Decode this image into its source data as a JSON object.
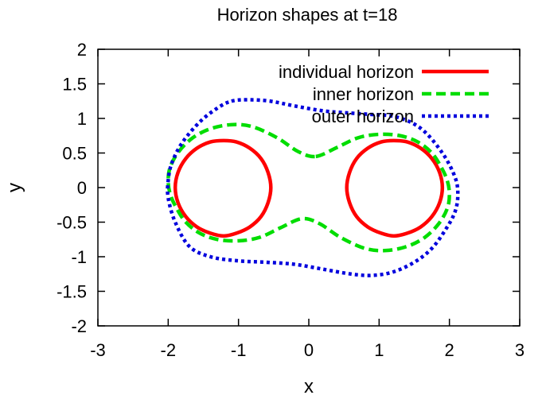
{
  "chart_data": {
    "type": "line",
    "title": "Horizon shapes at t=18",
    "xlabel": "x",
    "ylabel": "y",
    "xlim": [
      -3,
      3
    ],
    "ylim": [
      -2,
      2
    ],
    "xticks": [
      -3,
      -2,
      -1,
      0,
      1,
      2,
      3
    ],
    "yticks": [
      -2,
      -1.5,
      -1,
      -0.5,
      0,
      0.5,
      1,
      1.5,
      2
    ],
    "xtick_labels": [
      "-3",
      "-2",
      "-1",
      "0",
      "1",
      "2",
      "3"
    ],
    "ytick_labels": [
      "-2",
      "-1.5",
      "-1",
      "-0.5",
      "0",
      "0.5",
      "1",
      "1.5",
      "2"
    ],
    "grid": false,
    "legend_position": "top-right",
    "series": [
      {
        "name": "individual horizon",
        "color": "#ff0000",
        "dash": "solid",
        "closed": true,
        "segments": [
          {
            "x": [
              -0.54,
              -0.58,
              -0.68,
              -0.84,
              -1.03,
              -1.21,
              -1.4,
              -1.59,
              -1.75,
              -1.86,
              -1.9,
              -1.86,
              -1.75,
              -1.59,
              -1.4,
              -1.21,
              -1.03,
              -0.84,
              -0.68,
              -0.58
            ],
            "y": [
              0.0,
              0.22,
              0.42,
              0.57,
              0.66,
              0.68,
              0.66,
              0.57,
              0.42,
              0.22,
              0.0,
              -0.22,
              -0.42,
              -0.57,
              -0.66,
              -0.7,
              -0.66,
              -0.57,
              -0.42,
              -0.22
            ]
          },
          {
            "x": [
              0.54,
              0.58,
              0.68,
              0.84,
              1.03,
              1.21,
              1.4,
              1.59,
              1.75,
              1.86,
              1.9,
              1.86,
              1.75,
              1.59,
              1.4,
              1.21,
              1.03,
              0.84,
              0.68,
              0.58
            ],
            "y": [
              0.0,
              0.22,
              0.42,
              0.57,
              0.66,
              0.68,
              0.66,
              0.57,
              0.42,
              0.22,
              0.0,
              -0.22,
              -0.42,
              -0.57,
              -0.66,
              -0.7,
              -0.66,
              -0.57,
              -0.42,
              -0.22
            ]
          }
        ]
      },
      {
        "name": "inner horizon",
        "color": "#00dd00",
        "dash": "dashed",
        "closed": true,
        "segments": [
          {
            "x": [
              0.1,
              0.4,
              0.7,
              1.0,
              1.3,
              1.55,
              1.75,
              1.88,
              1.97,
              2.0,
              1.97,
              1.85,
              1.65,
              1.4,
              1.1,
              0.8,
              0.45,
              0.15,
              -0.1,
              -0.4,
              -0.7,
              -1.0,
              -1.3,
              -1.55,
              -1.75,
              -1.88,
              -1.97,
              -2.0,
              -1.97,
              -1.85,
              -1.65,
              -1.4,
              -1.1,
              -0.8,
              -0.45,
              -0.15
            ],
            "y": [
              0.45,
              0.58,
              0.72,
              0.77,
              0.75,
              0.66,
              0.5,
              0.3,
              0.1,
              -0.1,
              -0.3,
              -0.52,
              -0.72,
              -0.85,
              -0.91,
              -0.88,
              -0.72,
              -0.52,
              -0.45,
              -0.58,
              -0.72,
              -0.77,
              -0.75,
              -0.66,
              -0.5,
              -0.3,
              -0.1,
              0.1,
              0.3,
              0.52,
              0.72,
              0.85,
              0.91,
              0.88,
              0.72,
              0.52
            ]
          }
        ]
      },
      {
        "name": "outer horizon",
        "color": "#0000dd",
        "dash": "dotted",
        "closed": true,
        "segments": [
          {
            "x": [
              -1.1,
              -0.85,
              -0.55,
              -0.2,
              0.2,
              0.55,
              0.85,
              1.25,
              1.6,
              1.9,
              2.08,
              2.12,
              2.08,
              1.95,
              1.75,
              1.5,
              1.2,
              0.9,
              0.6,
              0.2,
              -0.2,
              -0.6,
              -1.0,
              -1.4,
              -1.7,
              -1.9,
              -2.0,
              -2.0,
              -1.95,
              -1.8,
              -1.55,
              -1.3
            ],
            "y": [
              1.25,
              1.27,
              1.25,
              1.18,
              1.11,
              1.08,
              1.06,
              1.02,
              0.85,
              0.5,
              0.15,
              -0.1,
              -0.35,
              -0.6,
              -0.88,
              -1.08,
              -1.22,
              -1.27,
              -1.25,
              -1.18,
              -1.11,
              -1.08,
              -1.06,
              -1.0,
              -0.85,
              -0.5,
              -0.15,
              0.1,
              0.35,
              0.65,
              0.95,
              1.15
            ]
          }
        ]
      }
    ]
  }
}
